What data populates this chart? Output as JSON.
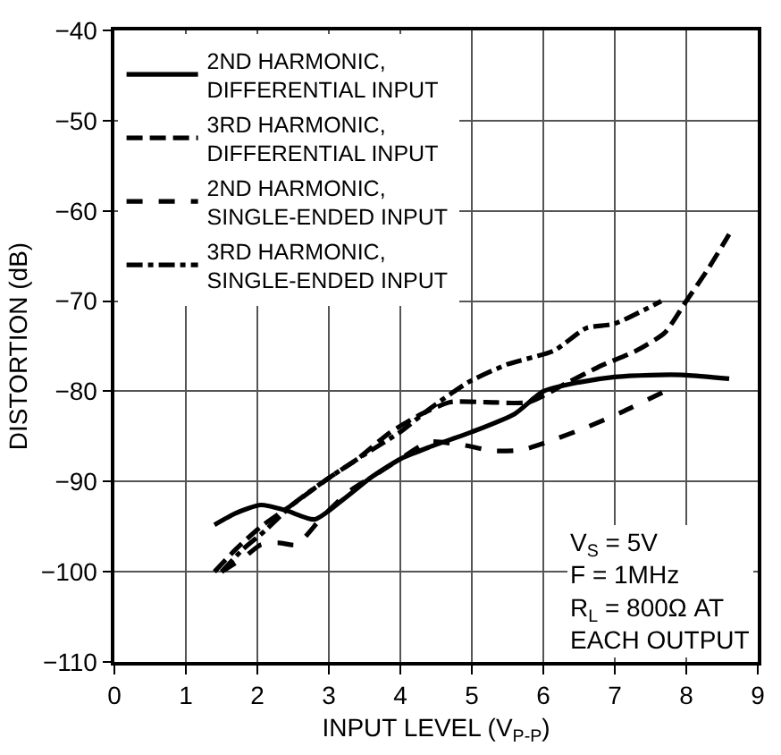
{
  "chart_data": {
    "type": "line",
    "xlabel": "INPUT LEVEL (V$_{P-P}$)",
    "ylabel": "DISTORTION (dB)",
    "xlim": [
      0,
      9
    ],
    "xticks": [
      0,
      1,
      2,
      3,
      4,
      5,
      6,
      7,
      8,
      9
    ],
    "ylim": [
      -110,
      -40
    ],
    "yticks": [
      -110,
      -100,
      -90,
      -80,
      -70,
      -60,
      -50,
      -40
    ],
    "grid": true,
    "legend": "top left",
    "marker": "none",
    "annotations": [
      "V$_{S}$ = 5V\nF = 1MHz\nR$_{L}$ = 800Ω AT\nEACH OUTPUT"
    ],
    "series": [
      {
        "name": "2ND HARMONIC,\nDIFFERENTIAL INPUT",
        "color": "#000000",
        "line_style": "solid",
        "x": [
          1.4,
          1.7,
          2.05,
          2.4,
          2.8,
          3.2,
          3.6,
          4.0,
          4.4,
          5.0,
          5.6,
          6.0,
          6.5,
          7.0,
          7.5,
          8.0,
          8.6
        ],
        "values": [
          -94.8,
          -93.5,
          -92.6,
          -93.2,
          -94.2,
          -92.0,
          -89.5,
          -87.5,
          -86.2,
          -84.5,
          -82.5,
          -80.0,
          -79.0,
          -78.4,
          -78.2,
          -78.2,
          -78.6
        ]
      },
      {
        "name": "3RD HARMONIC,\nDIFFERENTIAL INPUT",
        "color": "#000000",
        "line_style": "longdash",
        "x": [
          1.4,
          1.7,
          2.05,
          2.5,
          3.0,
          3.4,
          3.85,
          4.3,
          4.7,
          5.2,
          5.8,
          6.3,
          6.8,
          7.3,
          7.7,
          8.0,
          8.3,
          8.6
        ],
        "values": [
          -100.0,
          -97.5,
          -95.0,
          -92.5,
          -89.6,
          -87.5,
          -84.6,
          -82.5,
          -81.2,
          -81.2,
          -81.2,
          -79.2,
          -77.2,
          -75.5,
          -73.5,
          -70.0,
          -66.5,
          -62.6
        ]
      },
      {
        "name": "2ND HARMONIC,\nSINGLE-ENDED INPUT",
        "color": "#000000",
        "line_style": "dash",
        "x": [
          1.5,
          1.8,
          2.05,
          2.3,
          2.55,
          2.9,
          3.3,
          3.7,
          4.0,
          4.4,
          4.9,
          5.3,
          5.7,
          6.1,
          6.6,
          7.1,
          7.7
        ],
        "values": [
          -100.0,
          -98.5,
          -97.0,
          -96.8,
          -97.0,
          -94.0,
          -91.0,
          -89.0,
          -87.5,
          -85.6,
          -86.0,
          -86.6,
          -86.5,
          -85.5,
          -84.0,
          -82.3,
          -80.0
        ]
      },
      {
        "name": "3RD HARMONIC,\nSINGLE-ENDED INPUT",
        "color": "#000000",
        "line_style": "dashdot",
        "x": [
          1.5,
          1.8,
          2.1,
          2.5,
          3.0,
          3.5,
          4.0,
          4.4,
          4.95,
          5.5,
          6.15,
          6.6,
          7.0,
          7.65
        ],
        "values": [
          -100.0,
          -97.5,
          -95.5,
          -92.5,
          -89.6,
          -87.0,
          -84.5,
          -82.0,
          -79.0,
          -77.0,
          -75.5,
          -73.0,
          -72.5,
          -70.0
        ]
      }
    ]
  }
}
